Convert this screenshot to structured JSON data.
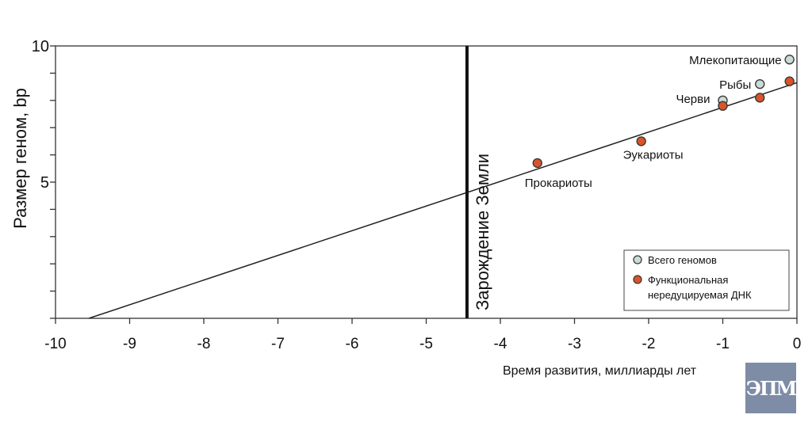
{
  "chart_data": {
    "type": "scatter",
    "xlabel": "Время развития, миллиарды лет",
    "ylabel": "Размер геном, bp",
    "xlim": [
      -10,
      0
    ],
    "ylim": [
      0,
      10
    ],
    "x_ticks": [
      "-10",
      "-9",
      "-8",
      "-7",
      "-6",
      "-5",
      "-4",
      "-3",
      "-2",
      "-1",
      "0"
    ],
    "y_ticks": [
      "5",
      "10"
    ],
    "grid": false,
    "legend_position": "bottom-right",
    "series": [
      {
        "name": "Всего геномов",
        "color": "#c9dcd6",
        "points": [
          {
            "x": -1.0,
            "y": 8.0
          },
          {
            "x": -0.5,
            "y": 8.6
          },
          {
            "x": -0.1,
            "y": 9.5
          }
        ]
      },
      {
        "name": "Функциональная нередуцируемая ДНК",
        "color": "#d9542a",
        "points": [
          {
            "x": -3.5,
            "y": 5.7
          },
          {
            "x": -2.1,
            "y": 6.5
          },
          {
            "x": -1.0,
            "y": 7.8
          },
          {
            "x": -0.5,
            "y": 8.1
          },
          {
            "x": -0.1,
            "y": 8.7
          }
        ]
      }
    ],
    "trend_line": {
      "from": [
        -9.55,
        0
      ],
      "to": [
        0,
        8.65
      ]
    },
    "vertical_line": {
      "x": -4.45,
      "label": "Зарождение Земли"
    },
    "annotations": [
      {
        "text": "Млекопитающие",
        "x": -0.1,
        "y": 9.5
      },
      {
        "text": "Рыбы",
        "x": -0.5,
        "y": 8.6
      },
      {
        "text": "Черви",
        "x": -1.0,
        "y": 8.0
      },
      {
        "text": "Эукариоты",
        "x": -2.1,
        "y": 6.5
      },
      {
        "text": "Прокариоты",
        "x": -3.5,
        "y": 5.7
      }
    ]
  },
  "logo": {
    "text": "ЭПМ"
  }
}
